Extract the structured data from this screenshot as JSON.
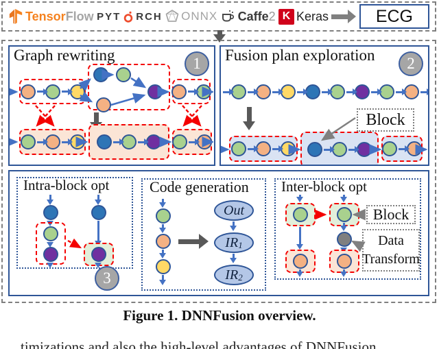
{
  "logo_bar": {
    "tensorflow_primary": "Tensor",
    "tensorflow_secondary": "Flow",
    "pytorch_pre": "PYT",
    "pytorch_post": "RCH",
    "onnx": "ONNX",
    "caffe": "Caffe",
    "caffe_suffix": "2",
    "keras_badge": "K",
    "keras": "Keras",
    "ecg": "ECG"
  },
  "panels": {
    "graph_rewriting": {
      "title": "Graph rewriting",
      "badge": "1",
      "top_left": [
        "orange",
        "green",
        "yellow"
      ],
      "cluster": [
        "blue",
        "green",
        "orange",
        "purple"
      ],
      "top_right": [
        "orange",
        "green"
      ],
      "bottom_left": [
        "green",
        "orange",
        "yellow"
      ],
      "bottom_mid": [
        "blue",
        "green",
        "purple"
      ],
      "bottom_right": [
        "green",
        "orange"
      ]
    },
    "fusion_plan": {
      "title": "Fusion plan exploration",
      "badge": "2",
      "block_label": "Block",
      "top_chain": [
        "green",
        "orange",
        "yellow",
        "blue",
        "green",
        "purple",
        "green",
        "orange"
      ],
      "bottom_g1": [
        "green",
        "orange",
        "yellow"
      ],
      "bottom_g2": [
        "blue",
        "green",
        "purple"
      ],
      "bottom_g3": [
        "green",
        "orange"
      ]
    },
    "intra_block": {
      "title": "Intra-block opt",
      "badge": "3",
      "left_column": [
        "blue",
        "green",
        "purple"
      ],
      "right_column": [
        "blue",
        "purple"
      ]
    },
    "code_generation": {
      "title": "Code generation",
      "input_chain": [
        "green",
        "orange",
        "yellow"
      ],
      "ir": [
        {
          "base": "Out",
          "sub": ""
        },
        {
          "base": "IR",
          "sub": "1"
        },
        {
          "base": "IR",
          "sub": "2"
        }
      ]
    },
    "inter_block": {
      "title": "Inter-block opt",
      "block_label": "Block",
      "data_transform_line1": "Data",
      "data_transform_line2": "Transform",
      "left_column": [
        "green",
        "orange"
      ],
      "right_column": [
        "green",
        "gray",
        "orange"
      ]
    }
  },
  "caption": "Figure 1. DNNFusion overview.",
  "partial_text": "timizations and also the high-level advantages of DNNFusion",
  "palette": {
    "green": "#A9D18E",
    "orange": "#F4B183",
    "yellow": "#FFD966",
    "blue": "#2E75B6",
    "purple": "#7030A0",
    "gray": "#7F7F7F",
    "node_border": "#2E5597",
    "arrow": "#4472C4",
    "red": "#F40000",
    "peach_fill": "#FBE5D6",
    "lightblue_fill": "#DAE3F3",
    "lightgreen_fill": "#E2EFDA",
    "badge_fill": "#A6A6A6",
    "panel_border": "#2E5597",
    "dark_arrow": "#595959",
    "ir_fill": "#B4C7E7"
  }
}
